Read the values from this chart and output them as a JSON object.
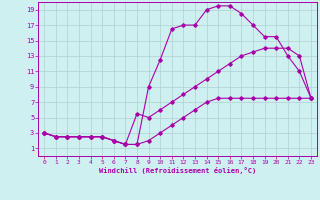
{
  "xlabel": "Windchill (Refroidissement éolien,°C)",
  "bg_color": "#cff0f0",
  "grid_color": "#b0d0d0",
  "line_color": "#aa00aa",
  "xlim": [
    -0.5,
    23.5
  ],
  "ylim": [
    0,
    20
  ],
  "xticks": [
    0,
    1,
    2,
    3,
    4,
    5,
    6,
    7,
    8,
    9,
    10,
    11,
    12,
    13,
    14,
    15,
    16,
    17,
    18,
    19,
    20,
    21,
    22,
    23
  ],
  "yticks": [
    1,
    3,
    5,
    7,
    9,
    11,
    13,
    15,
    17,
    19
  ],
  "line1_x": [
    0,
    1,
    2,
    3,
    4,
    5,
    6,
    7,
    8,
    9,
    10,
    11,
    12,
    13,
    14,
    15,
    16,
    17,
    18,
    19,
    20,
    21,
    22,
    23
  ],
  "line1_y": [
    3,
    2.5,
    2.5,
    2.5,
    2.5,
    2.5,
    2,
    1.5,
    1.5,
    9,
    12.5,
    16.5,
    17,
    17,
    19,
    19.5,
    19.5,
    18.5,
    17,
    15.5,
    15.5,
    13,
    11,
    7.5
  ],
  "line2_x": [
    0,
    1,
    2,
    3,
    4,
    5,
    6,
    7,
    8,
    9,
    10,
    11,
    12,
    13,
    14,
    15,
    16,
    17,
    18,
    19,
    20,
    21,
    22,
    23
  ],
  "line2_y": [
    3,
    2.5,
    2.5,
    2.5,
    2.5,
    2.5,
    2,
    1.5,
    5.5,
    5,
    6,
    7,
    8,
    9,
    10,
    11,
    12,
    13,
    13.5,
    14,
    14,
    14,
    13,
    7.5
  ],
  "line3_x": [
    0,
    1,
    2,
    3,
    4,
    5,
    6,
    7,
    8,
    9,
    10,
    11,
    12,
    13,
    14,
    15,
    16,
    17,
    18,
    19,
    20,
    21,
    22,
    23
  ],
  "line3_y": [
    3,
    2.5,
    2.5,
    2.5,
    2.5,
    2.5,
    2,
    1.5,
    1.5,
    2,
    3,
    4,
    5,
    6,
    7,
    7.5,
    7.5,
    7.5,
    7.5,
    7.5,
    7.5,
    7.5,
    7.5,
    7.5
  ]
}
